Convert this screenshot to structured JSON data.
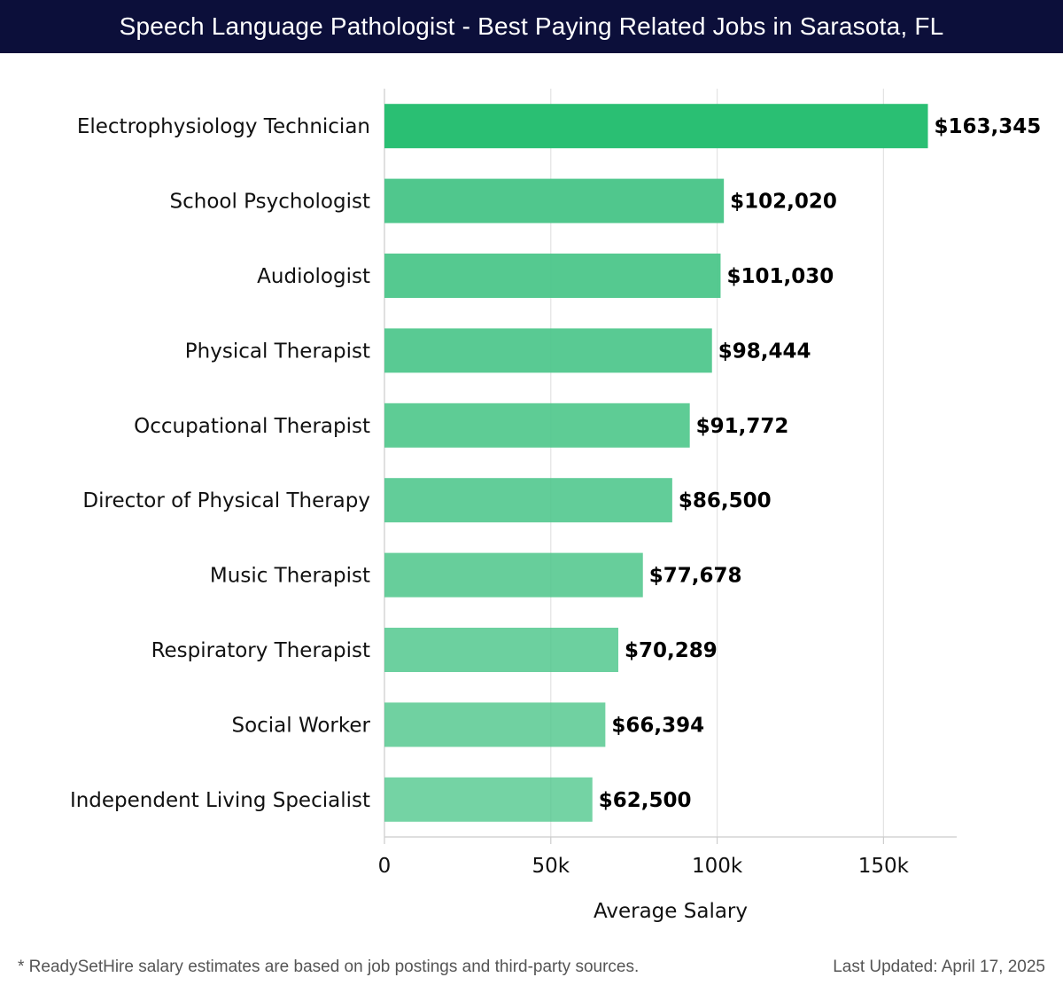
{
  "header": {
    "title": "Speech Language Pathologist - Best Paying Related Jobs in Sarasota, FL"
  },
  "footer": {
    "note": "* ReadySetHire salary estimates are based on job postings and third-party sources.",
    "updated": "Last Updated: April 17, 2025"
  },
  "colors": {
    "header_bg": "#0c0f3a",
    "bar_top": "#2abf73",
    "bar": "#4cc68a"
  },
  "chart_data": {
    "type": "bar",
    "orientation": "horizontal",
    "categories": [
      "Electrophysiology Technician",
      "School Psychologist",
      "Audiologist",
      "Physical Therapist",
      "Occupational Therapist",
      "Director of Physical Therapy",
      "Music Therapist",
      "Respiratory Therapist",
      "Social Worker",
      "Independent Living Specialist"
    ],
    "values": [
      163345,
      102020,
      101030,
      98444,
      91772,
      86500,
      77678,
      70289,
      66394,
      62500
    ],
    "value_labels": [
      "$163,345",
      "$102,020",
      "$101,030",
      "$98,444",
      "$91,772",
      "$86,500",
      "$77,678",
      "$70,289",
      "$66,394",
      "$62,500"
    ],
    "xlabel": "Average Salary",
    "ylabel": "",
    "xlim": [
      0,
      172000
    ],
    "xticks": [
      0,
      50000,
      100000,
      150000
    ],
    "xtick_labels": [
      "0",
      "50k",
      "100k",
      "150k"
    ],
    "grid": "vertical"
  }
}
